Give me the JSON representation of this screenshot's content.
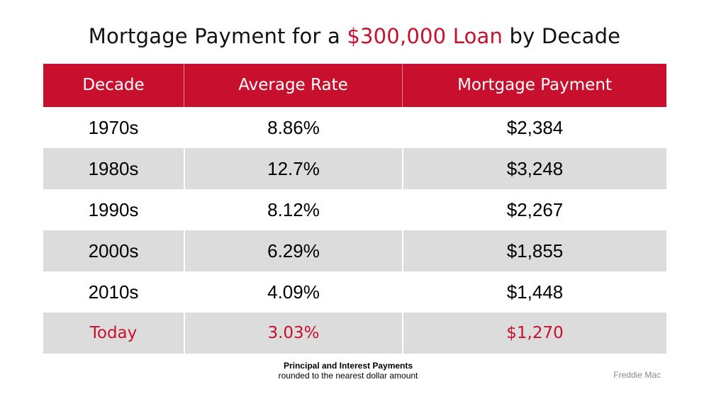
{
  "title": {
    "prefix": "Mortgage Payment for a ",
    "highlight": "$300,000 Loan",
    "suffix": " by Decade"
  },
  "colors": {
    "accent": "#c8102e",
    "row_shade": "#dcdcdc",
    "text": "#000000",
    "source_text": "#8a8a8a"
  },
  "chart_data": {
    "type": "table",
    "columns": [
      "Decade",
      "Average Rate",
      "Mortgage Payment"
    ],
    "rows": [
      [
        "1970s",
        "8.86%",
        "$2,384"
      ],
      [
        "1980s",
        "12.7%",
        "$3,248"
      ],
      [
        "1990s",
        "8.12%",
        "$2,267"
      ],
      [
        "2000s",
        "6.29%",
        "$1,855"
      ],
      [
        "2010s",
        "4.09%",
        "$1,448"
      ],
      [
        "Today",
        "3.03%",
        "$1,270"
      ]
    ],
    "highlighted_row": "Today",
    "shaded_rows": [
      "1980s",
      "2000s",
      "Today"
    ]
  },
  "footnote": {
    "line1": "Principal and Interest Payments",
    "line2": "rounded to the nearest dollar amount"
  },
  "source": "Freddie Mac"
}
